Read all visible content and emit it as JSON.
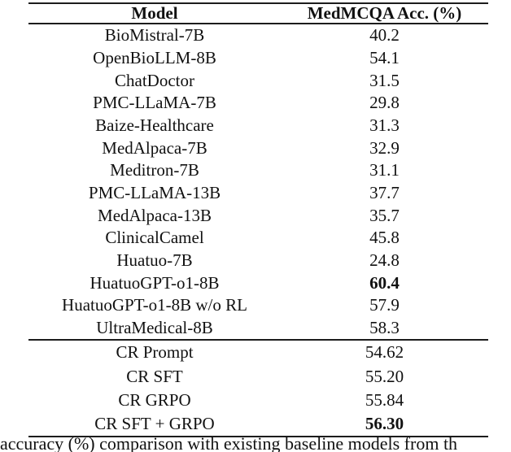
{
  "table": {
    "columns": [
      "Model",
      "MedMCQA Acc. (%)"
    ],
    "groups": [
      {
        "rows": [
          {
            "model": "BioMistral-7B",
            "value": "40.2",
            "bold": false
          },
          {
            "model": "OpenBioLLM-8B",
            "value": "54.1",
            "bold": false
          },
          {
            "model": "ChatDoctor",
            "value": "31.5",
            "bold": false
          },
          {
            "model": "PMC-LLaMA-7B",
            "value": "29.8",
            "bold": false
          },
          {
            "model": "Baize-Healthcare",
            "value": "31.3",
            "bold": false
          },
          {
            "model": "MedAlpaca-7B",
            "value": "32.9",
            "bold": false
          },
          {
            "model": "Meditron-7B",
            "value": "31.1",
            "bold": false
          },
          {
            "model": "PMC-LLaMA-13B",
            "value": "37.7",
            "bold": false
          },
          {
            "model": "MedAlpaca-13B",
            "value": "35.7",
            "bold": false
          },
          {
            "model": "ClinicalCamel",
            "value": "45.8",
            "bold": false
          },
          {
            "model": "Huatuo-7B",
            "value": "24.8",
            "bold": false
          },
          {
            "model": "HuatuoGPT-o1-8B",
            "value": "60.4",
            "bold": true
          },
          {
            "model": "HuatuoGPT-o1-8B w/o RL",
            "value": "57.9",
            "bold": false
          },
          {
            "model": "UltraMedical-8B",
            "value": "58.3",
            "bold": false
          }
        ]
      },
      {
        "rows": [
          {
            "model": "CR Prompt",
            "value": "54.62",
            "bold": false
          },
          {
            "model": "CR SFT",
            "value": "55.20",
            "bold": false
          },
          {
            "model": "CR GRPO",
            "value": "55.84",
            "bold": false
          },
          {
            "model": "CR SFT + GRPO",
            "value": "56.30",
            "bold": true
          }
        ]
      }
    ]
  },
  "caption": "accuracy (%) comparison with existing baseline models from th",
  "colors": {
    "background": "#ffffff",
    "text": "#111111",
    "rule": "#1c1c1c"
  }
}
